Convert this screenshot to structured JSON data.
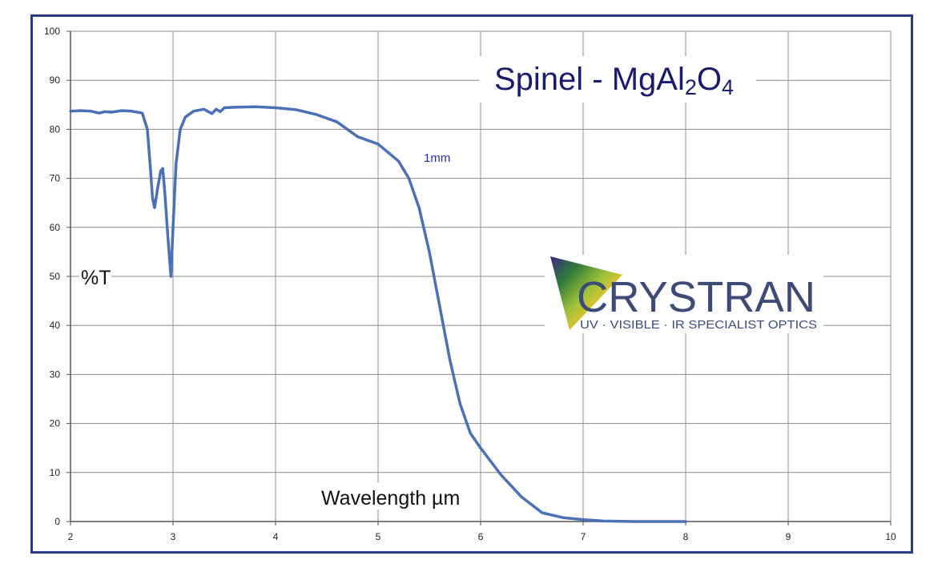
{
  "chart_data": {
    "type": "line",
    "title": {
      "parts": [
        {
          "text": "Spinel - MgAl",
          "role": "normal"
        },
        {
          "text": "2",
          "role": "sub"
        },
        {
          "text": "O",
          "role": "normal"
        },
        {
          "text": "4",
          "role": "sub"
        }
      ]
    },
    "xlabel": "Wavelength µm",
    "ylabel": "%T",
    "xlim": [
      2,
      10
    ],
    "ylim": [
      0,
      100
    ],
    "xticks": [
      2,
      3,
      4,
      5,
      6,
      7,
      8,
      9,
      10
    ],
    "yticks": [
      0,
      10,
      20,
      30,
      40,
      50,
      60,
      70,
      80,
      90,
      100
    ],
    "grid": true,
    "series": [
      {
        "name": "1mm",
        "color": "#4a70b5",
        "x": [
          2.0,
          2.1,
          2.2,
          2.28,
          2.3,
          2.33,
          2.4,
          2.5,
          2.6,
          2.7,
          2.75,
          2.78,
          2.8,
          2.82,
          2.85,
          2.88,
          2.9,
          2.92,
          2.95,
          2.98,
          3.0,
          3.03,
          3.07,
          3.12,
          3.2,
          3.3,
          3.38,
          3.42,
          3.46,
          3.5,
          3.6,
          3.8,
          4.0,
          4.2,
          4.4,
          4.6,
          4.8,
          5.0,
          5.2,
          5.3,
          5.4,
          5.5,
          5.6,
          5.7,
          5.8,
          5.9,
          6.0,
          6.2,
          6.4,
          6.6,
          6.8,
          7.0,
          7.2,
          7.5,
          8.0
        ],
        "y": [
          83.7,
          83.8,
          83.7,
          83.3,
          83.4,
          83.6,
          83.5,
          83.8,
          83.7,
          83.3,
          80,
          72,
          66,
          64,
          68,
          71.5,
          72,
          67,
          58,
          50,
          60,
          73,
          80,
          82.5,
          83.7,
          84.1,
          83.2,
          84.1,
          83.6,
          84.4,
          84.5,
          84.6,
          84.4,
          84.0,
          83.0,
          81.5,
          78.5,
          77.0,
          73.5,
          70.0,
          64.0,
          55.0,
          44.0,
          33.0,
          24.0,
          18.0,
          15.0,
          9.5,
          5.0,
          1.8,
          0.8,
          0.4,
          0.1,
          0,
          0
        ]
      }
    ],
    "logo": {
      "text": "CRYSTRAN",
      "tagline": "UV · VISIBLE · IR SPECIALIST OPTICS"
    }
  }
}
